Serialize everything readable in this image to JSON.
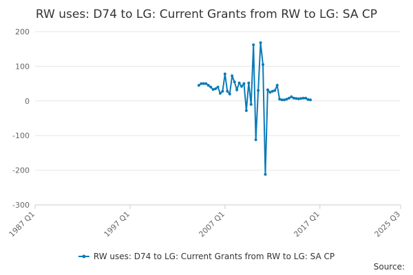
{
  "chart_data": {
    "type": "line",
    "title": "RW uses: D74 to LG: Current Grants from RW to LG: SA CP",
    "source": "Source:",
    "x": [
      "2004 Q2",
      "2004 Q3",
      "2004 Q4",
      "2005 Q1",
      "2005 Q2",
      "2005 Q3",
      "2005 Q4",
      "2006 Q1",
      "2006 Q2",
      "2006 Q3",
      "2006 Q4",
      "2007 Q1",
      "2007 Q2",
      "2007 Q3",
      "2007 Q4",
      "2008 Q1",
      "2008 Q2",
      "2008 Q3",
      "2008 Q4",
      "2009 Q1",
      "2009 Q2",
      "2009 Q3",
      "2009 Q4",
      "2010 Q1",
      "2010 Q2",
      "2010 Q3",
      "2010 Q4",
      "2011 Q1",
      "2011 Q2",
      "2011 Q3",
      "2011 Q4",
      "2012 Q1",
      "2012 Q2",
      "2012 Q3",
      "2012 Q4",
      "2013 Q1",
      "2013 Q2",
      "2013 Q3",
      "2013 Q4",
      "2014 Q1",
      "2014 Q2",
      "2014 Q3",
      "2014 Q4",
      "2015 Q1",
      "2015 Q2",
      "2015 Q3",
      "2015 Q4",
      "2016 Q1"
    ],
    "series": [
      {
        "name": "RW uses: D74 to LG: Current Grants from RW to LG: SA CP",
        "color": "#0a7ab8",
        "values": [
          45,
          50,
          50,
          50,
          45,
          40,
          33,
          35,
          40,
          22,
          28,
          78,
          28,
          20,
          72,
          55,
          32,
          52,
          42,
          50,
          -28,
          52,
          -10,
          162,
          -112,
          30,
          168,
          105,
          -212,
          32,
          25,
          28,
          30,
          45,
          5,
          3,
          3,
          5,
          8,
          12,
          8,
          7,
          6,
          7,
          8,
          8,
          4,
          3
        ]
      }
    ],
    "xlim": [
      "1987 Q1",
      "2025 Q3"
    ],
    "xticks": [
      "1987 Q1",
      "1997 Q1",
      "2007 Q1",
      "2017 Q1",
      "2025 Q3"
    ],
    "ylim": [
      -300,
      200
    ],
    "yticks": [
      -300,
      -200,
      -100,
      0,
      100,
      200
    ],
    "grid": true,
    "legend": "bottom"
  }
}
